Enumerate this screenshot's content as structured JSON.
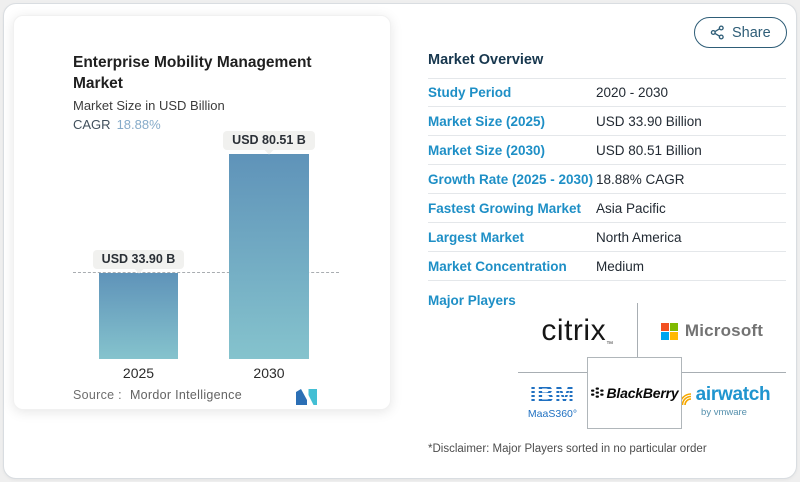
{
  "share": {
    "label": "Share",
    "icon": "network-share-icon"
  },
  "chart_card": {
    "title": "Enterprise Mobility Management Market",
    "subtitle": "Market Size in USD Billion",
    "cagr_label": "CAGR",
    "cagr_value": "18.88%",
    "source_label": "Source :",
    "source_value": "Mordor Intelligence"
  },
  "chart_data": {
    "type": "bar",
    "categories": [
      "2025",
      "2030"
    ],
    "values": [
      33.9,
      80.51
    ],
    "bar_labels": [
      "USD 33.90 B",
      "USD 80.51 B"
    ],
    "title": "Enterprise Mobility Management Market",
    "xlabel": "",
    "ylabel": "Market Size in USD Billion",
    "ylim": [
      0,
      80.51
    ],
    "grid": false,
    "annotations": [
      "dashed horizontal guide line at 2025 value"
    ],
    "colors": {
      "bar_gradient_top": "#5f93b9",
      "bar_gradient_bottom": "#85c3cd",
      "guide_line": "#a9adb1"
    }
  },
  "overview": {
    "title": "Market Overview",
    "rows": [
      {
        "label": "Study Period",
        "value": "2020 - 2030"
      },
      {
        "label": "Market Size (2025)",
        "value": "USD 33.90 Billion"
      },
      {
        "label": "Market Size (2030)",
        "value": "USD 80.51 Billion"
      },
      {
        "label": "Growth Rate (2025 - 2030)",
        "value": "18.88% CAGR"
      },
      {
        "label": "Fastest Growing Market",
        "value": "Asia Pacific"
      },
      {
        "label": "Largest Market",
        "value": "North America"
      },
      {
        "label": "Market Concentration",
        "value": "Medium"
      }
    ],
    "major_players_label": "Major Players",
    "logos": {
      "citrix": "citrix",
      "citrix_tm": "™",
      "microsoft": "Microsoft",
      "ibm": "IBM",
      "maas360": "MaaS360°",
      "blackberry": "BlackBerry",
      "airwatch": "airwatch",
      "vmware_by": "by vmware"
    },
    "brand_colors": {
      "ms_red": "#f25022",
      "ms_green": "#7fba00",
      "ms_blue": "#00a4ef",
      "ms_yellow": "#ffb900",
      "ibm_blue": "#1f70c1",
      "airwatch_blue": "#2095cf",
      "airwatch_orange": "#f6a800",
      "label_blue": "#1e8fc6",
      "navy": "#17374e",
      "share_teal": "#2e5d77"
    },
    "disclaimer": "*Disclaimer: Major Players sorted in no particular order"
  }
}
